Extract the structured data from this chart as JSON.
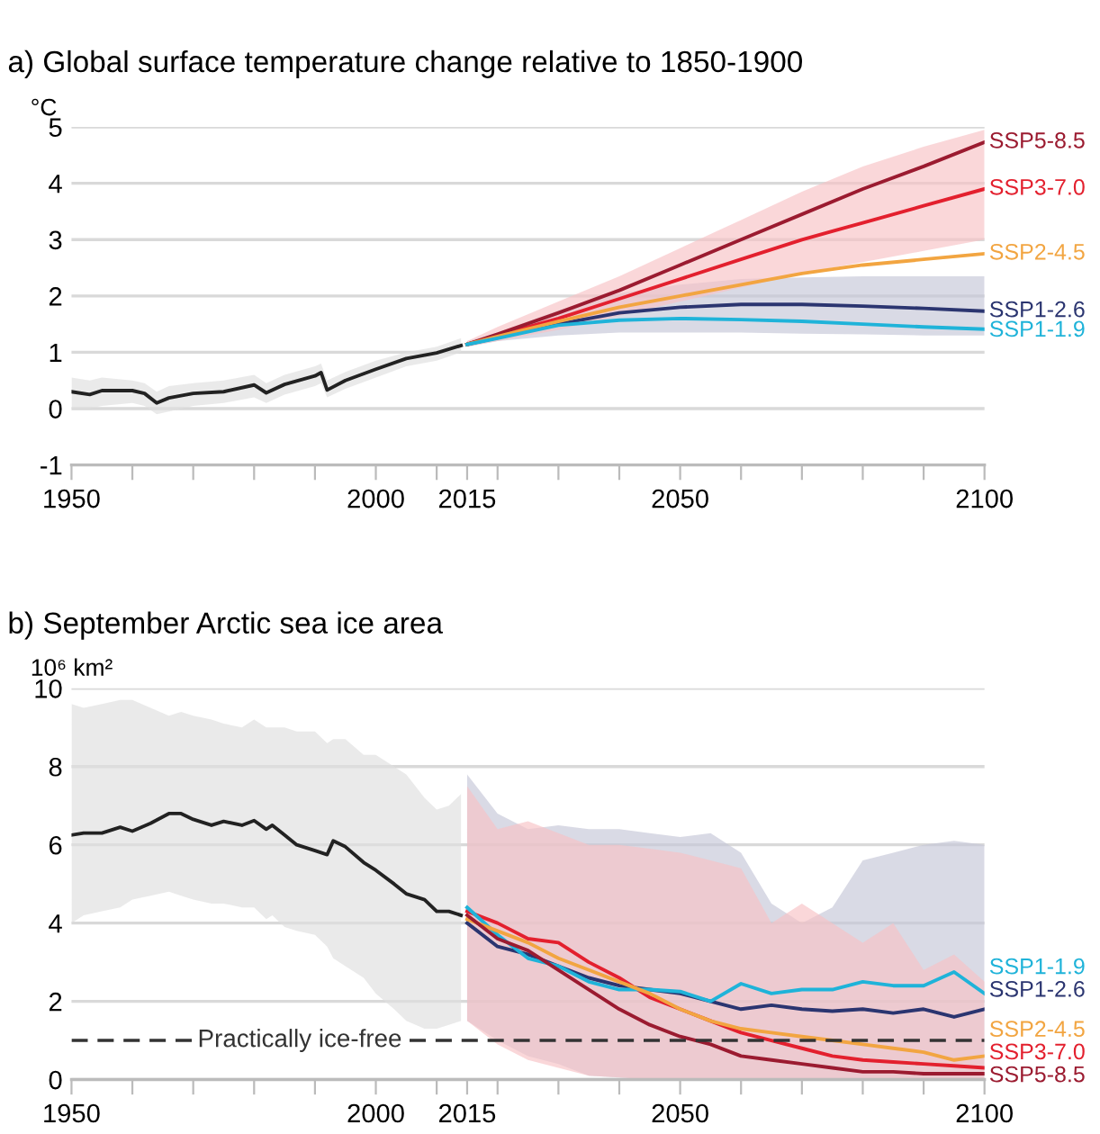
{
  "chart_data": [
    {
      "type": "line",
      "title": "a) Global surface temperature change relative to 1850-1900",
      "ylabel": "°C",
      "xlim": [
        1950,
        2100
      ],
      "xticks": [
        1950,
        {
          "value": 1960,
          "label": null
        },
        {
          "value": 1970,
          "label": null
        },
        {
          "value": 1980,
          "label": null
        },
        {
          "value": 1990,
          "label": null
        },
        2000,
        {
          "value": 2010,
          "label": null
        },
        2015,
        {
          "value": 2020,
          "label": null
        },
        {
          "value": 2030,
          "label": null
        },
        {
          "value": 2040,
          "label": null
        },
        2050,
        {
          "value": 2060,
          "label": null
        },
        {
          "value": 2070,
          "label": null
        },
        {
          "value": 2080,
          "label": null
        },
        {
          "value": 2090,
          "label": null
        },
        2100
      ],
      "ylim": [
        -1,
        5
      ],
      "yticks": [
        -1,
        0,
        1,
        2,
        3,
        4,
        5
      ],
      "grid": "y",
      "legend": false,
      "series": [
        {
          "color": "#222222",
          "x": [
            1950,
            1953,
            1955,
            1960,
            1962,
            1964,
            1966,
            1970,
            1975,
            1980,
            1982,
            1985,
            1990,
            1991,
            1992,
            1995,
            2000,
            2005,
            2010,
            2014
          ],
          "values": [
            0.3,
            0.25,
            0.32,
            0.32,
            0.27,
            0.1,
            0.19,
            0.27,
            0.3,
            0.42,
            0.28,
            0.43,
            0.58,
            0.64,
            0.33,
            0.5,
            0.7,
            0.89,
            0.99,
            1.12
          ],
          "lower": [
            0.0,
            0.0,
            0.05,
            0.1,
            0.05,
            -0.1,
            -0.05,
            0.05,
            0.1,
            0.2,
            0.1,
            0.25,
            0.4,
            0.45,
            0.2,
            0.35,
            0.55,
            0.75,
            0.85,
            1.0
          ],
          "upper": [
            0.55,
            0.5,
            0.55,
            0.5,
            0.45,
            0.3,
            0.4,
            0.45,
            0.5,
            0.6,
            0.45,
            0.6,
            0.75,
            0.8,
            0.5,
            0.65,
            0.85,
            1.0,
            1.1,
            1.25
          ]
        },
        {
          "name": "SSP1-2.6",
          "color": "#2b3570",
          "x": [
            2015,
            2020,
            2030,
            2040,
            2050,
            2060,
            2070,
            2080,
            2090,
            2100
          ],
          "values": [
            1.14,
            1.26,
            1.5,
            1.7,
            1.8,
            1.85,
            1.85,
            1.82,
            1.78,
            1.73
          ],
          "lower": [
            1.1,
            1.2,
            1.3,
            1.35,
            1.35,
            1.35,
            1.33,
            1.32,
            1.3,
            1.3
          ],
          "upper": [
            1.2,
            1.35,
            1.75,
            2.05,
            2.2,
            2.3,
            2.33,
            2.35,
            2.35,
            2.35
          ]
        },
        {
          "name": "SSP3-7.0",
          "color": "#e3202e",
          "x": [
            2015,
            2020,
            2030,
            2040,
            2050,
            2060,
            2070,
            2080,
            2090,
            2100
          ],
          "values": [
            1.14,
            1.3,
            1.6,
            1.95,
            2.3,
            2.65,
            3.0,
            3.3,
            3.6,
            3.9
          ],
          "lower": [
            1.1,
            1.2,
            1.4,
            1.65,
            1.9,
            2.15,
            2.4,
            2.6,
            2.8,
            3.0
          ],
          "upper": [
            1.2,
            1.45,
            1.9,
            2.35,
            2.85,
            3.35,
            3.85,
            4.3,
            4.65,
            4.95
          ]
        },
        {
          "name": "SSP5-8.5",
          "color": "#9b1b30",
          "x": [
            2015,
            2020,
            2030,
            2040,
            2050,
            2060,
            2070,
            2080,
            2090,
            2100
          ],
          "values": [
            1.14,
            1.32,
            1.7,
            2.1,
            2.55,
            3.0,
            3.45,
            3.9,
            4.3,
            4.73
          ]
        },
        {
          "name": "SSP2-4.5",
          "color": "#f2a541",
          "x": [
            2015,
            2020,
            2030,
            2040,
            2050,
            2060,
            2070,
            2080,
            2090,
            2100
          ],
          "values": [
            1.14,
            1.28,
            1.55,
            1.8,
            2.0,
            2.2,
            2.4,
            2.55,
            2.65,
            2.75
          ]
        },
        {
          "name": "SSP1-1.9",
          "color": "#1fb3d9",
          "x": [
            2015,
            2020,
            2030,
            2040,
            2050,
            2060,
            2070,
            2080,
            2090,
            2100
          ],
          "values": [
            1.14,
            1.25,
            1.48,
            1.57,
            1.6,
            1.58,
            1.55,
            1.5,
            1.45,
            1.41
          ]
        }
      ]
    },
    {
      "type": "line",
      "title": "b) September Arctic sea ice area",
      "ylabel": "10⁶ km²",
      "xlim": [
        1950,
        2100
      ],
      "xticks": [
        1950,
        {
          "value": 1960,
          "label": null
        },
        {
          "value": 1970,
          "label": null
        },
        {
          "value": 1980,
          "label": null
        },
        {
          "value": 1990,
          "label": null
        },
        2000,
        {
          "value": 2010,
          "label": null
        },
        2015,
        {
          "value": 2020,
          "label": null
        },
        {
          "value": 2030,
          "label": null
        },
        {
          "value": 2040,
          "label": null
        },
        2050,
        {
          "value": 2060,
          "label": null
        },
        {
          "value": 2070,
          "label": null
        },
        {
          "value": 2080,
          "label": null
        },
        {
          "value": 2090,
          "label": null
        },
        2100
      ],
      "ylim": [
        0,
        10
      ],
      "yticks": [
        0,
        2,
        4,
        6,
        8,
        10
      ],
      "grid": "y",
      "legend": false,
      "ref_lines": [
        {
          "axis": "y",
          "value": 1,
          "label": "Practically ice-free",
          "line_style": "dashed",
          "color": "#333333"
        }
      ],
      "series": [
        {
          "color": "#222222",
          "x": [
            1950,
            1952,
            1955,
            1958,
            1960,
            1963,
            1966,
            1968,
            1970,
            1973,
            1975,
            1978,
            1980,
            1982,
            1983,
            1985,
            1987,
            1990,
            1992,
            1993,
            1995,
            1998,
            2000,
            2003,
            2005,
            2008,
            2010,
            2012,
            2014
          ],
          "values": [
            6.25,
            6.3,
            6.3,
            6.45,
            6.35,
            6.55,
            6.8,
            6.8,
            6.65,
            6.5,
            6.6,
            6.5,
            6.62,
            6.4,
            6.5,
            6.25,
            6.0,
            5.85,
            5.75,
            6.1,
            5.95,
            5.55,
            5.35,
            5.0,
            4.75,
            4.6,
            4.3,
            4.3,
            4.2
          ],
          "lower": [
            4.0,
            4.2,
            4.3,
            4.4,
            4.6,
            4.7,
            4.8,
            4.7,
            4.6,
            4.5,
            4.5,
            4.4,
            4.4,
            4.1,
            4.2,
            3.9,
            3.8,
            3.7,
            3.4,
            3.1,
            2.9,
            2.6,
            2.2,
            1.8,
            1.5,
            1.3,
            1.3,
            1.4,
            1.5
          ],
          "upper": [
            9.6,
            9.5,
            9.6,
            9.7,
            9.7,
            9.5,
            9.3,
            9.4,
            9.3,
            9.2,
            9.1,
            9.0,
            9.2,
            9.0,
            9.0,
            9.0,
            8.9,
            8.9,
            8.6,
            8.7,
            8.7,
            8.3,
            8.3,
            8.0,
            7.8,
            7.2,
            6.9,
            7.0,
            7.3
          ]
        },
        {
          "name": "SSP1-2.6",
          "color": "#2b3570",
          "x": [
            2015,
            2020,
            2025,
            2030,
            2035,
            2040,
            2045,
            2050,
            2055,
            2060,
            2065,
            2070,
            2075,
            2080,
            2085,
            2090,
            2095,
            2100
          ],
          "values": [
            4.0,
            3.4,
            3.2,
            2.9,
            2.6,
            2.4,
            2.3,
            2.2,
            2.0,
            1.8,
            1.9,
            1.8,
            1.75,
            1.8,
            1.7,
            1.8,
            1.6,
            1.8
          ],
          "lower": [
            1.5,
            1.0,
            0.6,
            0.4,
            0.1,
            0.05,
            0,
            0,
            0,
            0,
            0,
            0,
            0,
            0,
            0,
            0,
            0,
            0
          ],
          "upper": [
            7.8,
            6.8,
            6.4,
            6.5,
            6.4,
            6.4,
            6.3,
            6.2,
            6.3,
            5.8,
            4.5,
            4.0,
            4.4,
            5.6,
            5.8,
            6.0,
            6.1,
            6.0
          ]
        },
        {
          "name": "SSP3-7.0",
          "color": "#e3202e",
          "x": [
            2015,
            2020,
            2025,
            2030,
            2035,
            2040,
            2045,
            2050,
            2055,
            2060,
            2065,
            2070,
            2075,
            2080,
            2085,
            2090,
            2095,
            2100
          ],
          "values": [
            4.3,
            4.0,
            3.6,
            3.5,
            3.0,
            2.6,
            2.1,
            1.8,
            1.5,
            1.2,
            1.0,
            0.8,
            0.6,
            0.5,
            0.45,
            0.4,
            0.35,
            0.3
          ],
          "lower": [
            1.5,
            0.9,
            0.5,
            0.3,
            0.1,
            0.05,
            0,
            0,
            0,
            0,
            0,
            0,
            0,
            0,
            0,
            0,
            0,
            0
          ],
          "upper": [
            7.5,
            6.4,
            6.6,
            6.3,
            6.0,
            6.0,
            5.9,
            5.8,
            5.6,
            5.4,
            4.0,
            4.5,
            4.0,
            3.5,
            4.0,
            2.8,
            3.2,
            2.5
          ]
        },
        {
          "name": "SSP1-1.9",
          "color": "#1fb3d9",
          "x": [
            2015,
            2020,
            2025,
            2030,
            2035,
            2040,
            2045,
            2050,
            2055,
            2060,
            2065,
            2070,
            2075,
            2080,
            2085,
            2090,
            2095,
            2100
          ],
          "values": [
            4.4,
            3.7,
            3.1,
            2.9,
            2.5,
            2.3,
            2.3,
            2.25,
            2.0,
            2.45,
            2.2,
            2.3,
            2.3,
            2.5,
            2.4,
            2.4,
            2.75,
            2.2
          ]
        },
        {
          "name": "SSP2-4.5",
          "color": "#f2a541",
          "x": [
            2015,
            2020,
            2025,
            2030,
            2035,
            2040,
            2045,
            2050,
            2055,
            2060,
            2065,
            2070,
            2075,
            2080,
            2085,
            2090,
            2095,
            2100
          ],
          "values": [
            4.1,
            3.8,
            3.5,
            3.1,
            2.8,
            2.5,
            2.2,
            1.8,
            1.5,
            1.3,
            1.2,
            1.1,
            1.0,
            0.9,
            0.8,
            0.7,
            0.5,
            0.6
          ]
        },
        {
          "name": "SSP5-8.5",
          "color": "#9b1b30",
          "x": [
            2015,
            2020,
            2025,
            2030,
            2035,
            2040,
            2045,
            2050,
            2055,
            2060,
            2065,
            2070,
            2075,
            2080,
            2085,
            2090,
            2095,
            2100
          ],
          "values": [
            4.2,
            3.6,
            3.3,
            2.8,
            2.3,
            1.8,
            1.4,
            1.1,
            0.9,
            0.6,
            0.5,
            0.4,
            0.3,
            0.2,
            0.2,
            0.15,
            0.15,
            0.15
          ]
        }
      ]
    }
  ]
}
